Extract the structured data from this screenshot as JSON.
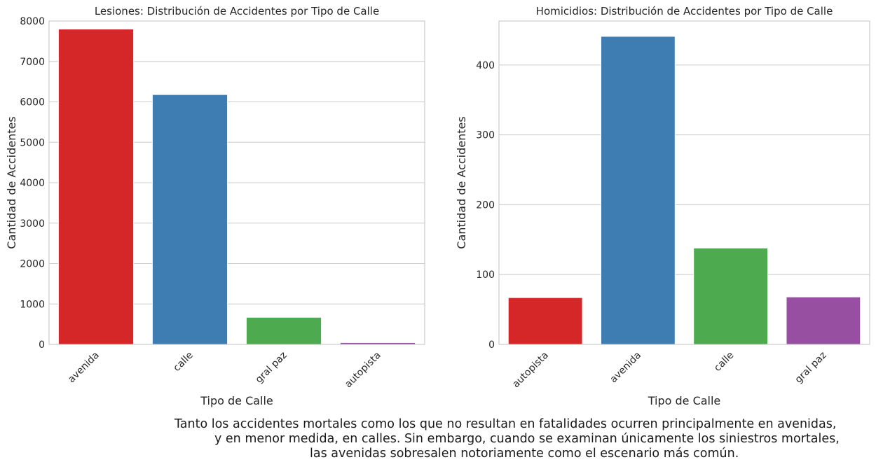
{
  "chart_data": [
    {
      "type": "bar",
      "title": "Lesiones: Distribución de Accidentes por Tipo de Calle",
      "xlabel": "Tipo de Calle",
      "ylabel": "Cantidad de Accidentes",
      "categories": [
        "avenida",
        "calle",
        "gral paz",
        "autopista"
      ],
      "values": [
        7800,
        6180,
        670,
        45
      ],
      "colors": [
        "#d62728",
        "#3d7db1",
        "#4daa4f",
        "#9750a1"
      ],
      "ylim": [
        0,
        8000
      ],
      "yticks": [
        0,
        1000,
        2000,
        3000,
        4000,
        5000,
        6000,
        7000,
        8000
      ],
      "grid": true
    },
    {
      "type": "bar",
      "title": "Homicidios: Distribución de Accidentes por Tipo de Calle",
      "xlabel": "Tipo de Calle",
      "ylabel": "Cantidad de Accidentes",
      "categories": [
        "autopista",
        "avenida",
        "calle",
        "gral paz"
      ],
      "values": [
        67,
        441,
        138,
        68
      ],
      "colors": [
        "#d62728",
        "#3d7db1",
        "#4daa4f",
        "#9750a1"
      ],
      "ylim": [
        0,
        463
      ],
      "yticks": [
        0,
        100,
        200,
        300,
        400
      ],
      "grid": true
    }
  ],
  "caption": {
    "lines": [
      "Tanto los accidentes mortales como los que no resultan en fatalidades ocurren principalmente en avenidas,",
      "y en menor medida, en calles. Sin embargo, cuando se examinan únicamente los siniestros mortales,",
      "las avenidas sobresalen notoriamente como el escenario más común."
    ]
  }
}
